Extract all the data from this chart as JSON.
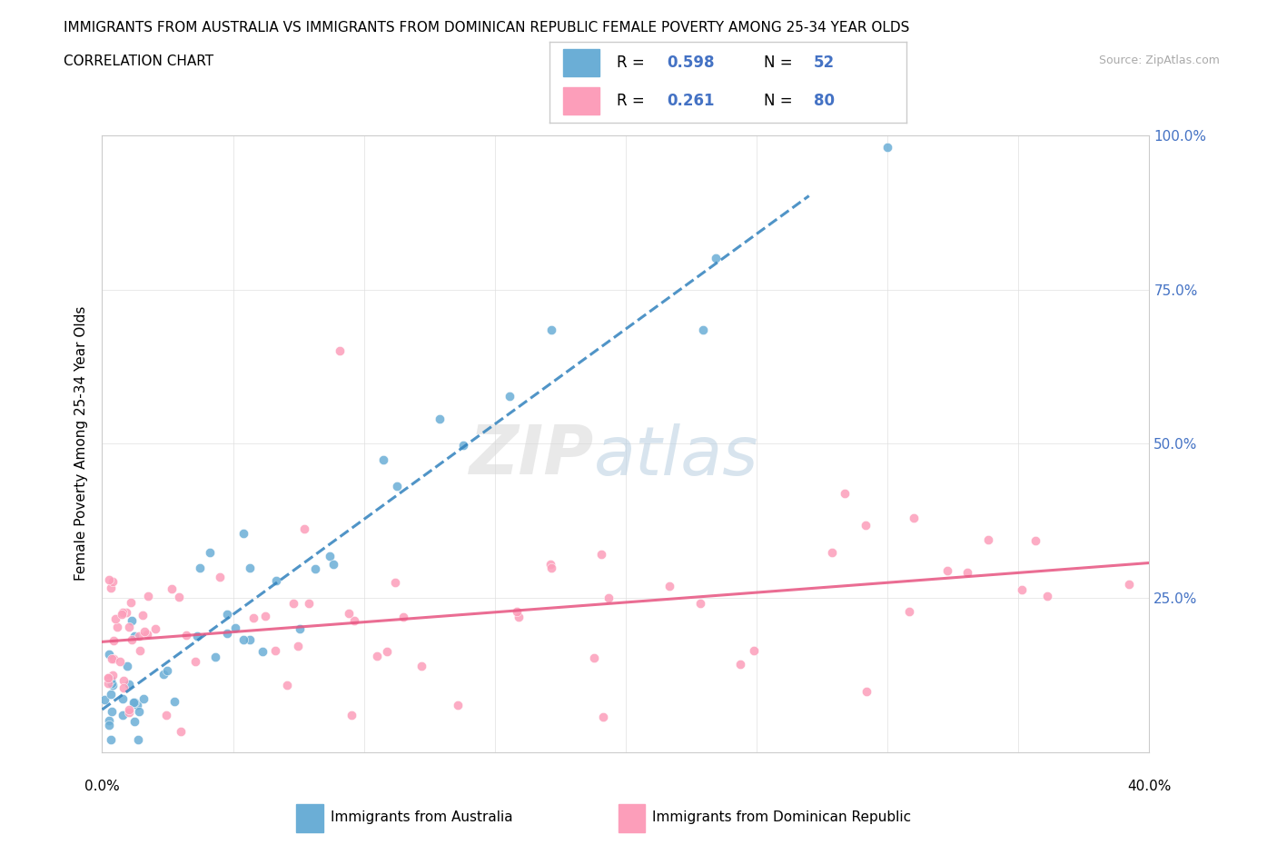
{
  "title_line1": "IMMIGRANTS FROM AUSTRALIA VS IMMIGRANTS FROM DOMINICAN REPUBLIC FEMALE POVERTY AMONG 25-34 YEAR OLDS",
  "title_line2": "CORRELATION CHART",
  "source_text": "Source: ZipAtlas.com",
  "ylabel": "Female Poverty Among 25-34 Year Olds",
  "xlim": [
    0.0,
    0.4
  ],
  "ylim": [
    0.0,
    1.0
  ],
  "series1_color": "#6baed6",
  "series2_color": "#fc9eba",
  "line1_color": "#3182bd",
  "line2_color": "#e75480",
  "background_color": "#ffffff",
  "series1_name": "Immigrants from Australia",
  "series2_name": "Immigrants from Dominican Republic",
  "legend_R1": "0.598",
  "legend_N1": "52",
  "legend_R2": "0.261",
  "legend_N2": "80",
  "right_ytick_labels": [
    "25.0%",
    "50.0%",
    "75.0%",
    "100.0%"
  ],
  "right_ytick_color": "#4472c4"
}
